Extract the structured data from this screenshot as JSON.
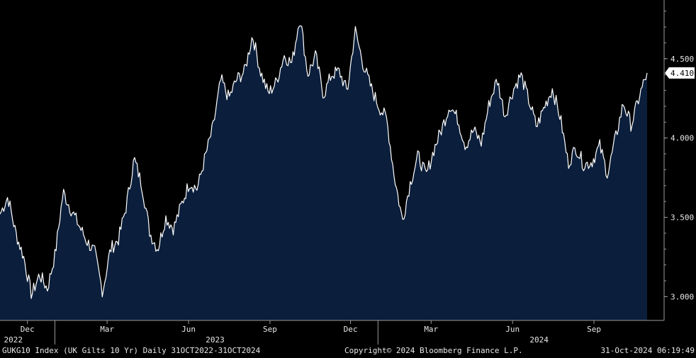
{
  "footer": {
    "ticker": "GUKG10 Index (UK Gilts 10 Yr)  Daily 31OCT2022-31OCT2024",
    "copyright": "Copyright© 2024 Bloomberg Finance L.P.",
    "timestamp": "31-Oct-2024 06:19:49"
  },
  "colors": {
    "background": "#000000",
    "area_fill": "#0b1f3c",
    "line": "#ffffff",
    "axis": "#9a9a9a",
    "text": "#e8e8e8",
    "last_value_badge_bg": "#ffffff",
    "last_value_badge_text": "#000000"
  },
  "chart_data": {
    "type": "area",
    "title": "",
    "xlabel": "",
    "ylabel": "",
    "series": [
      {
        "values": [
          3.52,
          3.63,
          3.4,
          3.25,
          3.01,
          3.14,
          3.05,
          3.27,
          3.66,
          3.55,
          3.45,
          3.35,
          3.28,
          3.03,
          3.3,
          3.36,
          3.57,
          3.87,
          3.7,
          3.4,
          3.3,
          3.5,
          3.43,
          3.58,
          3.72,
          3.68,
          3.88,
          4.07,
          4.37,
          4.25,
          4.37,
          4.42,
          4.65,
          4.42,
          4.28,
          4.35,
          4.52,
          4.47,
          4.77,
          4.4,
          4.52,
          4.27,
          4.4,
          4.42,
          4.29,
          4.68,
          4.47,
          4.32,
          4.2,
          4.12,
          3.75,
          3.48,
          3.72,
          3.89,
          3.76,
          3.93,
          4.06,
          4.21,
          4.12,
          3.95,
          4.05,
          3.97,
          4.22,
          4.37,
          4.14,
          4.3,
          4.4,
          4.24,
          4.07,
          4.2,
          4.31,
          4.13,
          3.84,
          3.94,
          3.83,
          3.85,
          3.95,
          3.77,
          4.0,
          4.22,
          4.08,
          4.26,
          4.41
        ]
      }
    ],
    "x_range": [
      "2022-10-31",
      "2024-10-31"
    ],
    "ylim": [
      2.85,
      4.87
    ],
    "y_ticks": [
      3.0,
      3.5,
      4.0,
      4.5
    ],
    "y_tick_labels": [
      "3.000",
      "3.500",
      "4.000",
      "4.500"
    ],
    "last_value": 4.41,
    "last_value_label": "4.410",
    "x_month_labels": [
      {
        "label": "Dec",
        "date": "2022-12-01"
      },
      {
        "label": "Mar",
        "date": "2023-03-01"
      },
      {
        "label": "Jun",
        "date": "2023-06-01"
      },
      {
        "label": "Sep",
        "date": "2023-09-01"
      },
      {
        "label": "Dec",
        "date": "2023-12-01"
      },
      {
        "label": "Mar",
        "date": "2024-03-01"
      },
      {
        "label": "Jun",
        "date": "2024-06-01"
      },
      {
        "label": "Sep",
        "date": "2024-09-01"
      }
    ],
    "x_year_labels": [
      {
        "label": "2022",
        "date": "2022-11-15"
      },
      {
        "label": "2023",
        "date": "2023-07-01"
      },
      {
        "label": "2024",
        "date": "2024-07-01"
      }
    ],
    "year_boundaries": [
      "2023-01-01",
      "2024-01-01"
    ],
    "grid": false,
    "y_axis_side": "right"
  }
}
